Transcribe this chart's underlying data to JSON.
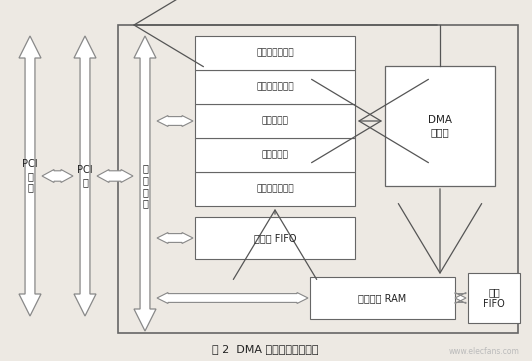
{
  "bg_color": "#ede9e3",
  "title": "图 2  DMA 控制器的模块结构",
  "font_color": "#222222",
  "watermark": "www.elecfans.com",
  "registers": [
    "控制状态寄存器",
    "地址寄存器",
    "字节寄存器",
    "中断状态寄存器",
    "中断屏蔽寄存器"
  ],
  "label_pci_bus": "PCI\n总\n线",
  "label_pci_core": "PCI\n核",
  "label_local_bus": "本\n地\n总\n线",
  "label_dma": "DMA\n状态机",
  "label_fifo": "描述符 FIFO",
  "label_ram": "数据通道 RAM",
  "label_ext_fifo": "外部\nFIFO"
}
